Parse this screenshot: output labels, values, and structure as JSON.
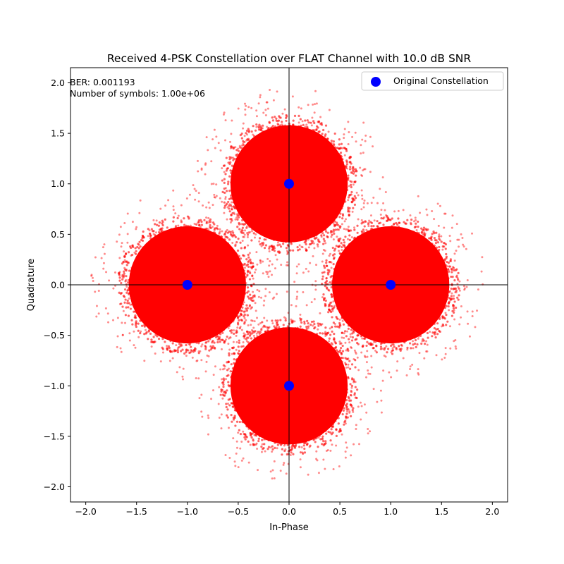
{
  "chart_data": {
    "type": "scatter",
    "title": "Received 4-PSK Constellation over FLAT Channel with 10.0 dB SNR",
    "xlabel": "In-Phase",
    "ylabel": "Quadrature",
    "xlim": [
      -2.15,
      2.15
    ],
    "ylim": [
      -2.15,
      2.15
    ],
    "xticks": [
      -2.0,
      -1.5,
      -1.0,
      -0.5,
      0.0,
      0.5,
      1.0,
      1.5,
      2.0
    ],
    "yticks": [
      -2.0,
      -1.5,
      -1.0,
      -0.5,
      0.0,
      0.5,
      1.0,
      1.5,
      2.0
    ],
    "xtick_labels": [
      "−2.0",
      "−1.5",
      "−1.0",
      "−0.5",
      "0.0",
      "0.5",
      "1.0",
      "1.5",
      "2.0"
    ],
    "ytick_labels": [
      "−2.0",
      "−1.5",
      "−1.0",
      "−0.5",
      "0.0",
      "0.5",
      "1.0",
      "1.5",
      "2.0"
    ],
    "grid": false,
    "reference_lines": {
      "horizontal_y": 0,
      "vertical_x": 0
    },
    "legend": {
      "placement": "upper-right",
      "entries": [
        {
          "label": "Original Constellation",
          "color": "#0000ff",
          "marker": "circle"
        }
      ]
    },
    "annotations": [
      "BER: 0.001193",
      "Number of symbols: 1.00e+06"
    ],
    "series": [
      {
        "name": "Original Constellation",
        "color": "#0000ff",
        "points": [
          {
            "x": 0.0,
            "y": 1.0
          },
          {
            "x": -1.0,
            "y": 0.0
          },
          {
            "x": 1.0,
            "y": 0.0
          },
          {
            "x": 0.0,
            "y": -1.0
          }
        ]
      },
      {
        "color": "#ff0000",
        "style": "noise cloud around each constellation point",
        "centers": [
          {
            "x": 0.0,
            "y": 1.0
          },
          {
            "x": -1.0,
            "y": 0.0
          },
          {
            "x": 1.0,
            "y": 0.0
          },
          {
            "x": 0.0,
            "y": -1.0
          }
        ],
        "dense_radius": 0.62,
        "max_spread": 0.95
      }
    ]
  }
}
